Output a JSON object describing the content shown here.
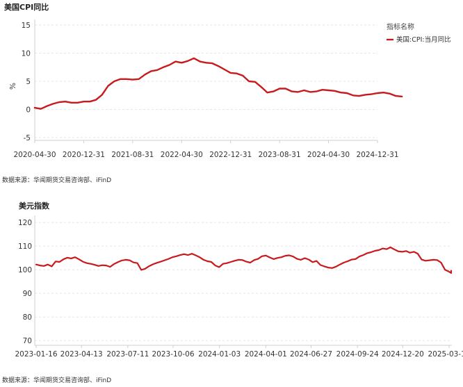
{
  "chart_data": [
    {
      "type": "line",
      "title": "美国CPI同比",
      "ylabel": "%",
      "ylim": [
        -5,
        15
      ],
      "yticks": [
        15,
        10,
        5,
        0,
        -5
      ],
      "xticks": [
        "2020-04-30",
        "2020-12-31",
        "2021-08-31",
        "2022-04-30",
        "2022-12-31",
        "2023-08-31",
        "2024-04-30",
        "2024-12-31"
      ],
      "legend_title": "指标名称",
      "legend_placement": "top-right",
      "source": "数据来源：华闻期货交易咨询部、iFinD",
      "color": "#c8191d",
      "series": [
        {
          "name": "美国:CPI:当月同比",
          "x": [
            "2020-04",
            "2020-05",
            "2020-06",
            "2020-07",
            "2020-08",
            "2020-09",
            "2020-10",
            "2020-11",
            "2020-12",
            "2021-01",
            "2021-02",
            "2021-03",
            "2021-04",
            "2021-05",
            "2021-06",
            "2021-07",
            "2021-08",
            "2021-09",
            "2021-10",
            "2021-11",
            "2021-12",
            "2022-01",
            "2022-02",
            "2022-03",
            "2022-04",
            "2022-05",
            "2022-06",
            "2022-07",
            "2022-08",
            "2022-09",
            "2022-10",
            "2022-11",
            "2022-12",
            "2023-01",
            "2023-02",
            "2023-03",
            "2023-04",
            "2023-05",
            "2023-06",
            "2023-07",
            "2023-08",
            "2023-09",
            "2023-10",
            "2023-11",
            "2023-12",
            "2024-01",
            "2024-02",
            "2024-03",
            "2024-04",
            "2024-05",
            "2024-06",
            "2024-07",
            "2024-08",
            "2024-09",
            "2024-10",
            "2024-11",
            "2024-12",
            "2025-01",
            "2025-02",
            "2025-03",
            "2025-04"
          ],
          "values": [
            0.3,
            0.1,
            0.6,
            1.0,
            1.3,
            1.4,
            1.2,
            1.2,
            1.4,
            1.4,
            1.7,
            2.6,
            4.2,
            5.0,
            5.4,
            5.4,
            5.3,
            5.4,
            6.2,
            6.8,
            7.0,
            7.5,
            7.9,
            8.5,
            8.3,
            8.6,
            9.1,
            8.5,
            8.3,
            8.2,
            7.7,
            7.1,
            6.5,
            6.4,
            6.0,
            5.0,
            4.9,
            4.0,
            3.0,
            3.2,
            3.7,
            3.7,
            3.2,
            3.1,
            3.4,
            3.1,
            3.2,
            3.5,
            3.4,
            3.3,
            3.0,
            2.9,
            2.5,
            2.4,
            2.6,
            2.7,
            2.9,
            3.0,
            2.8,
            2.4,
            2.3
          ]
        }
      ]
    },
    {
      "type": "line",
      "title": "美元指数",
      "ylim": [
        68,
        123
      ],
      "yticks": [
        120,
        110,
        100,
        90,
        80,
        70
      ],
      "xticks": [
        "2023-01-16",
        "2023-04-13",
        "2023-07-11",
        "2023-10-06",
        "2024-01-03",
        "2024-04-01",
        "2024-06-27",
        "2024-09-24",
        "2024-12-20",
        "2025-03-19"
      ],
      "source": "数据来源：华闻期货交易咨询部、iFinD",
      "color": "#c8191d",
      "series": [
        {
          "values": [
            102.2,
            101.8,
            101.6,
            102.2,
            101.4,
            103.5,
            103.3,
            104.4,
            105.1,
            104.8,
            105.3,
            104.4,
            103.4,
            102.8,
            102.5,
            102.1,
            101.6,
            101.9,
            101.8,
            101.2,
            102.4,
            103.2,
            103.9,
            104.2,
            104.0,
            103.1,
            102.8,
            99.9,
            100.4,
            101.5,
            102.3,
            102.9,
            103.4,
            104.0,
            104.6,
            105.3,
            105.7,
            106.2,
            106.6,
            106.2,
            106.8,
            106.1,
            105.3,
            104.2,
            103.6,
            103.3,
            101.8,
            101.1,
            102.5,
            102.8,
            103.3,
            103.8,
            104.2,
            104.1,
            103.4,
            103.0,
            104.1,
            104.6,
            105.7,
            106.0,
            105.2,
            104.5,
            105.0,
            105.3,
            105.9,
            106.1,
            105.6,
            104.6,
            104.2,
            104.9,
            104.3,
            103.2,
            103.7,
            102.0,
            101.4,
            100.9,
            100.7,
            101.3,
            102.2,
            103.0,
            103.6,
            104.3,
            104.5,
            105.6,
            106.2,
            107.0,
            107.4,
            108.0,
            108.3,
            109.0,
            108.7,
            109.5,
            108.6,
            107.8,
            107.6,
            107.9,
            107.2,
            107.6,
            106.8,
            104.3,
            103.8,
            104.0,
            104.2,
            104.1,
            103.0,
            100.0,
            99.2,
            98.6,
            99.6,
            99.2
          ]
        }
      ]
    }
  ]
}
